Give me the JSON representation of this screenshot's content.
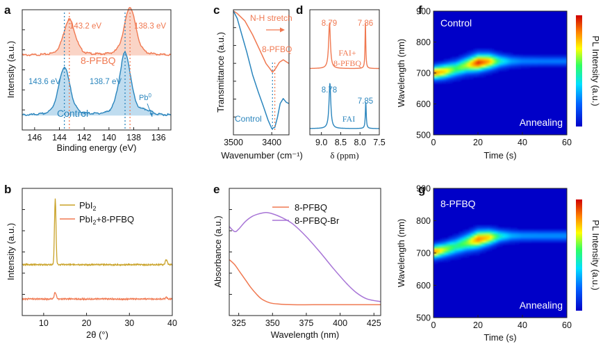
{
  "colors": {
    "orange": "#f07850",
    "blue": "#2a85bd",
    "gold": "#c9a227",
    "purple": "#a774d6",
    "axis": "#222222"
  },
  "chart_data": [
    {
      "id": "a",
      "panel_letter": "a",
      "type": "line",
      "xlabel": "Binding energy (eV)",
      "ylabel": "Intensity (a.u.)",
      "xlim": [
        147,
        135
      ],
      "x_ticks": [
        "146",
        "144",
        "142",
        "140",
        "138",
        "136"
      ],
      "x_tick_values": [
        146,
        144,
        142,
        140,
        138,
        136
      ],
      "series": [
        {
          "name": "8-PFBQ",
          "color": "#f07850",
          "baseline": 0.62,
          "peaks": [
            {
              "x": 143.2,
              "h": 0.3,
              "w": 0.55
            },
            {
              "x": 138.3,
              "h": 0.4,
              "w": 0.55
            }
          ]
        },
        {
          "name": "Control",
          "color": "#2a85bd",
          "baseline": 0.12,
          "peaks": [
            {
              "x": 143.6,
              "h": 0.4,
              "w": 0.55
            },
            {
              "x": 138.7,
              "h": 0.52,
              "w": 0.55
            },
            {
              "x": 137.0,
              "h": 0.03,
              "w": 0.5
            }
          ]
        }
      ],
      "annotations": [
        {
          "text": "143.2 eV",
          "color": "#f07850"
        },
        {
          "text": "138.3 eV",
          "color": "#f07850"
        },
        {
          "text": "143.6 eV",
          "color": "#2a85bd"
        },
        {
          "text": "138.7 eV",
          "color": "#2a85bd"
        },
        {
          "text": "Pb",
          "sup": "0",
          "color": "#2a85bd"
        }
      ]
    },
    {
      "id": "b",
      "panel_letter": "b",
      "type": "line",
      "xlabel": "2θ (°)",
      "ylabel": "Intensity (a.u.)",
      "xlim": [
        5,
        40
      ],
      "x_ticks": [
        "10",
        "20",
        "30",
        "40"
      ],
      "x_tick_values": [
        10,
        20,
        30,
        40
      ],
      "series": [
        {
          "name": "PbI",
          "sub": "2",
          "color": "#c9a227",
          "baseline": 0.4,
          "peaks": [
            {
              "x": 12.7,
              "h": 0.52,
              "w": 0.25
            },
            {
              "x": 38.6,
              "h": 0.04,
              "w": 0.3
            }
          ]
        },
        {
          "name": "PbI",
          "sub": "2",
          "suffix": "+8-PFBQ",
          "color": "#f07850",
          "baseline": 0.13,
          "peaks": [
            {
              "x": 12.7,
              "h": 0.05,
              "w": 0.35
            },
            {
              "x": 38.6,
              "h": 0.015,
              "w": 0.3
            }
          ]
        }
      ]
    },
    {
      "id": "c",
      "panel_letter": "c",
      "type": "line",
      "xlabel": "Wavenumber (cm⁻¹)",
      "ylabel": "Transmittance (a.u.)",
      "xlim": [
        3500,
        3355
      ],
      "x_ticks": [
        "3500",
        "3400"
      ],
      "x_tick_values": [
        3500,
        3400
      ],
      "series": [
        {
          "name": "8-PFBQ",
          "color": "#f07850",
          "points": [
            [
              3500,
              0.99
            ],
            [
              3490,
              0.97
            ],
            [
              3470,
              0.91
            ],
            [
              3450,
              0.8
            ],
            [
              3430,
              0.67
            ],
            [
              3415,
              0.57
            ],
            [
              3405,
              0.53
            ],
            [
              3398,
              0.5
            ],
            [
              3390,
              0.53
            ],
            [
              3380,
              0.58
            ],
            [
              3370,
              0.6
            ],
            [
              3360,
              0.58
            ],
            [
              3355,
              0.57
            ]
          ]
        },
        {
          "name": "Control",
          "color": "#2a85bd",
          "points": [
            [
              3500,
              0.99
            ],
            [
              3490,
              0.93
            ],
            [
              3478,
              0.8
            ],
            [
              3465,
              0.66
            ],
            [
              3450,
              0.48
            ],
            [
              3435,
              0.34
            ],
            [
              3422,
              0.23
            ],
            [
              3410,
              0.12
            ],
            [
              3400,
              0.05
            ],
            [
              3392,
              0.06
            ],
            [
              3385,
              0.14
            ],
            [
              3378,
              0.25
            ],
            [
              3370,
              0.29
            ],
            [
              3362,
              0.26
            ],
            [
              3355,
              0.25
            ]
          ]
        }
      ],
      "annotations": [
        {
          "text": "N-H stretch",
          "color": "#f07850"
        },
        {
          "text": "8-PFBQ",
          "color": "#f07850"
        },
        {
          "text": "Control",
          "color": "#2a85bd"
        }
      ]
    },
    {
      "id": "d",
      "panel_letter": "d",
      "type": "line",
      "xlabel": "δ (ppm)",
      "xlim": [
        9.3,
        7.5
      ],
      "x_ticks": [
        "9.0",
        "8.5",
        "8.0",
        "7.5"
      ],
      "x_tick_values": [
        9.0,
        8.5,
        8.0,
        7.5
      ],
      "series": [
        {
          "name": "FAI+ 8-PFBQ",
          "label_line1": "FAI+",
          "label_line2": "8-PFBQ",
          "color": "#f07850",
          "baseline": 0.53,
          "peaks": [
            {
              "x": 8.79,
              "h": 0.36,
              "w": 0.028
            },
            {
              "x": 7.86,
              "h": 0.36,
              "w": 0.012
            }
          ]
        },
        {
          "name": "FAI",
          "color": "#2a85bd",
          "baseline": 0.05,
          "peaks": [
            {
              "x": 8.78,
              "h": 0.36,
              "w": 0.028
            },
            {
              "x": 7.85,
              "h": 0.21,
              "w": 0.014
            }
          ]
        }
      ],
      "annotations": [
        {
          "text": "8.79",
          "color": "#f07850"
        },
        {
          "text": "7.86",
          "color": "#f07850"
        },
        {
          "text": "8.78",
          "color": "#2a85bd"
        },
        {
          "text": "7.85",
          "color": "#2a85bd"
        }
      ]
    },
    {
      "id": "e",
      "panel_letter": "e",
      "type": "line",
      "xlabel": "Wavelength (nm)",
      "ylabel": "Absorbance (a.u.)",
      "xlim": [
        318,
        430
      ],
      "x_ticks": [
        "325",
        "350",
        "375",
        "400",
        "425"
      ],
      "x_tick_values": [
        325,
        350,
        375,
        400,
        425
      ],
      "series": [
        {
          "name": "8-PFBQ",
          "color": "#f07850",
          "points": [
            [
              318,
              0.44
            ],
            [
              322,
              0.4
            ],
            [
              326,
              0.34
            ],
            [
              330,
              0.28
            ],
            [
              334,
              0.22
            ],
            [
              338,
              0.17
            ],
            [
              342,
              0.13
            ],
            [
              348,
              0.1
            ],
            [
              355,
              0.09
            ],
            [
              365,
              0.085
            ],
            [
              380,
              0.085
            ],
            [
              400,
              0.085
            ],
            [
              430,
              0.085
            ]
          ]
        },
        {
          "name": "8-PFBQ-Br",
          "color": "#a774d6",
          "points": [
            [
              318,
              0.7
            ],
            [
              322,
              0.66
            ],
            [
              325,
              0.68
            ],
            [
              330,
              0.74
            ],
            [
              335,
              0.78
            ],
            [
              340,
              0.8
            ],
            [
              345,
              0.81
            ],
            [
              350,
              0.8
            ],
            [
              357,
              0.77
            ],
            [
              365,
              0.72
            ],
            [
              375,
              0.62
            ],
            [
              385,
              0.5
            ],
            [
              395,
              0.37
            ],
            [
              405,
              0.25
            ],
            [
              412,
              0.18
            ],
            [
              420,
              0.13
            ],
            [
              430,
              0.11
            ]
          ]
        }
      ]
    },
    {
      "id": "f",
      "panel_letter": "f",
      "type": "heatmap",
      "xlabel": "Time (s)",
      "ylabel": "Wavelength (nm)",
      "colorbar_label": "PL Intensity (a.u.)",
      "xlim": [
        0,
        60
      ],
      "ylim": [
        500,
        900
      ],
      "x_ticks": [
        "0",
        "20",
        "40",
        "60"
      ],
      "x_tick_values": [
        0,
        20,
        40,
        60
      ],
      "y_ticks": [
        "500",
        "600",
        "700",
        "800",
        "900"
      ],
      "y_tick_values": [
        500,
        600,
        700,
        800,
        900
      ],
      "sample_label": "Control",
      "process_label": "Annealing",
      "ridge": [
        [
          0,
          700,
          0.85,
          20
        ],
        [
          5,
          705,
          0.75,
          22
        ],
        [
          10,
          713,
          0.55,
          24
        ],
        [
          15,
          725,
          0.65,
          25
        ],
        [
          20,
          733,
          0.95,
          26
        ],
        [
          25,
          737,
          0.8,
          24
        ],
        [
          30,
          738,
          0.45,
          20
        ],
        [
          35,
          738,
          0.3,
          17
        ],
        [
          40,
          738,
          0.25,
          15
        ],
        [
          50,
          738,
          0.24,
          14
        ],
        [
          60,
          738,
          0.24,
          14
        ]
      ]
    },
    {
      "id": "g",
      "panel_letter": "g",
      "type": "heatmap",
      "xlabel": "Time (s)",
      "ylabel": "Wavelength (nm)",
      "colorbar_label": "PL Intensity (a.u.)",
      "xlim": [
        0,
        60
      ],
      "ylim": [
        500,
        900
      ],
      "x_ticks": [
        "0",
        "20",
        "40",
        "60"
      ],
      "x_tick_values": [
        0,
        20,
        40,
        60
      ],
      "y_ticks": [
        "500",
        "600",
        "700",
        "800",
        "900"
      ],
      "y_tick_values": [
        500,
        600,
        700,
        800,
        900
      ],
      "sample_label": "8-PFBQ",
      "process_label": "Annealing",
      "ridge": [
        [
          0,
          703,
          0.85,
          19
        ],
        [
          5,
          710,
          0.65,
          21
        ],
        [
          10,
          720,
          0.5,
          24
        ],
        [
          15,
          732,
          0.6,
          25
        ],
        [
          20,
          742,
          0.85,
          26
        ],
        [
          25,
          748,
          0.75,
          23
        ],
        [
          30,
          752,
          0.45,
          18
        ],
        [
          35,
          753,
          0.32,
          16
        ],
        [
          40,
          753,
          0.28,
          15
        ],
        [
          50,
          753,
          0.27,
          15
        ],
        [
          60,
          753,
          0.27,
          15
        ]
      ]
    }
  ]
}
